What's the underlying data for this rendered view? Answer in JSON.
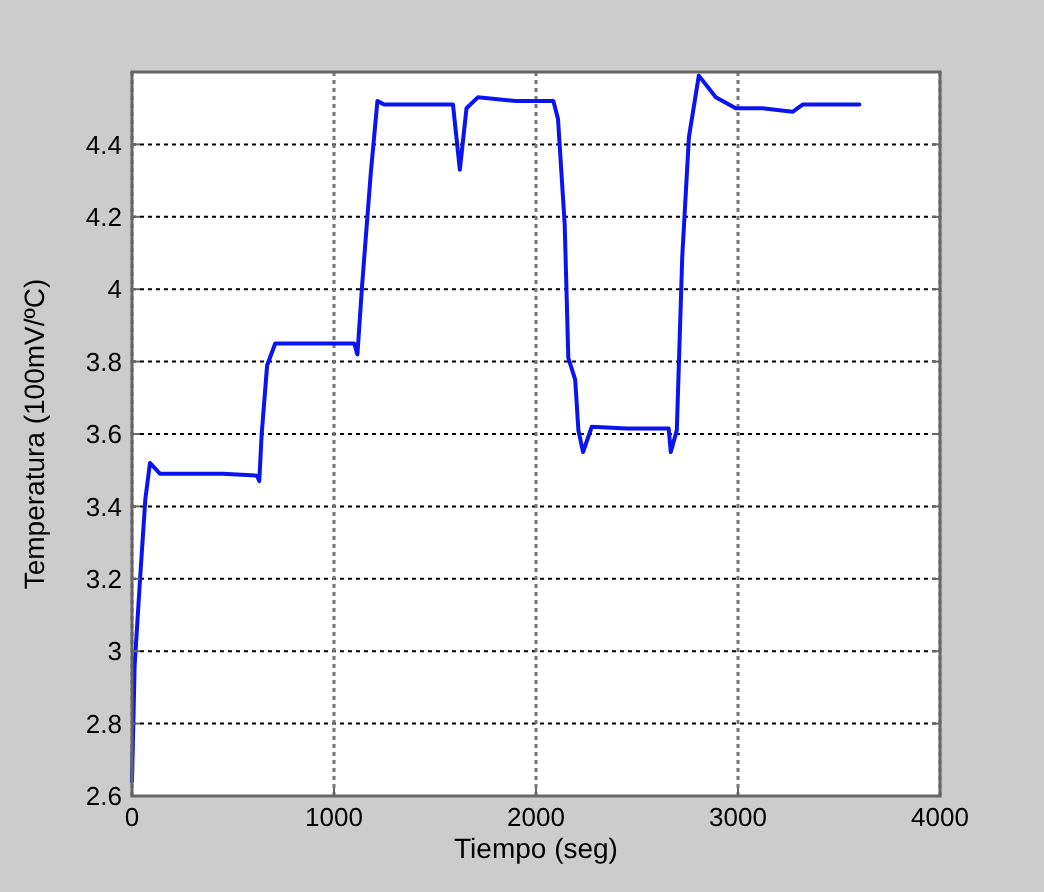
{
  "chart_data": {
    "type": "line",
    "xlabel": "Tiempo (seg)",
    "ylabel": "Temperatura (100mV/ºC)",
    "xlim": [
      0,
      4000
    ],
    "xticks": [
      0,
      1000,
      2000,
      3000,
      4000
    ],
    "ylim": [
      2.6,
      4.6
    ],
    "yticks": [
      2.6,
      2.8,
      3,
      3.2,
      3.4,
      3.6,
      3.8,
      4,
      4.2,
      4.4
    ],
    "grid": true,
    "line_style": "solid",
    "marker": "none",
    "series": [
      {
        "color": "#0a14f0",
        "x": [
          0,
          13,
          40,
          66,
          89,
          139,
          300,
          450,
          619,
          630,
          642,
          669,
          709,
          800,
          950,
          1100,
          1116,
          1139,
          1182,
          1215,
          1248,
          1400,
          1589,
          1623,
          1656,
          1712,
          1900,
          2086,
          2109,
          2142,
          2160,
          2194,
          2210,
          2233,
          2276,
          2450,
          2657,
          2667,
          2697,
          2724,
          2757,
          2806,
          2890,
          2989,
          3121,
          3270,
          3320,
          3450,
          3601
        ],
        "values": [
          2.64,
          2.96,
          3.2,
          3.42,
          3.52,
          3.49,
          3.49,
          3.49,
          3.485,
          3.47,
          3.6,
          3.79,
          3.85,
          3.85,
          3.85,
          3.85,
          3.82,
          4.01,
          4.32,
          4.52,
          4.51,
          4.51,
          4.51,
          4.33,
          4.5,
          4.53,
          4.52,
          4.52,
          4.47,
          4.18,
          3.81,
          3.75,
          3.61,
          3.55,
          3.62,
          3.615,
          3.615,
          3.55,
          3.61,
          4.09,
          4.42,
          4.59,
          4.53,
          4.5,
          4.5,
          4.49,
          4.51,
          4.51,
          4.51
        ]
      }
    ]
  }
}
